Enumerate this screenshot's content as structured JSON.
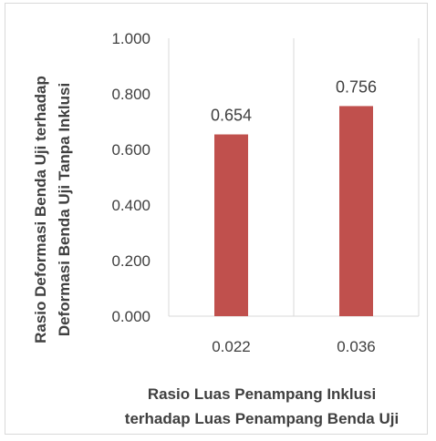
{
  "chart_data": {
    "type": "bar",
    "categories": [
      "0.022",
      "0.036"
    ],
    "values": [
      0.654,
      0.756
    ],
    "data_labels": [
      "0.654",
      "0.756"
    ],
    "ylim": [
      0,
      1.0
    ],
    "yticks": [
      0,
      0.2,
      0.4,
      0.6,
      0.8,
      1.0
    ],
    "ytick_labels": [
      "0.000",
      "0.200",
      "0.400",
      "0.600",
      "0.800",
      "1.000"
    ],
    "xlabel_lines": [
      "Rasio Luas Penampang Inklusi",
      "terhadap Luas Penampang Benda Uji"
    ],
    "ylabel_lines": [
      "Rasio Deformasi Benda Uji terhadap",
      "Deformasi Benda Uji Tanpa Inklusi"
    ],
    "bar_color": "#c0504d",
    "grid_color": "#d9d9d9",
    "legend": "none",
    "grid": "vertical category separators"
  }
}
